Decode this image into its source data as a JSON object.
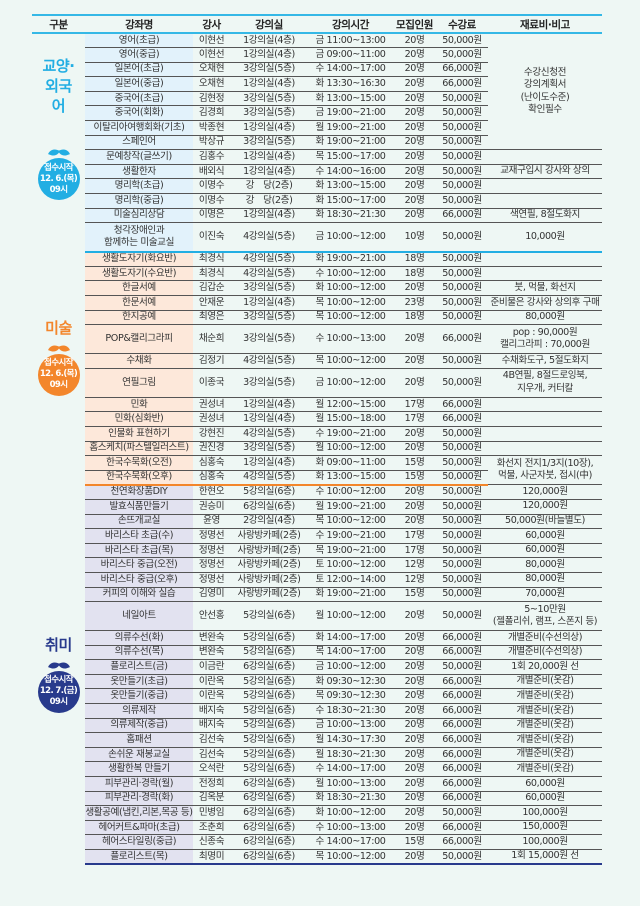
{
  "header": [
    "구분",
    "강좌명",
    "강사",
    "강의실",
    "강의시간",
    "모집인원",
    "수강료",
    "재료비·비고"
  ],
  "sections": [
    {
      "label": "교양·외국어",
      "color": "#22aee3",
      "name_bg": "#e2f2fb",
      "badge": {
        "title": "접수시작",
        "date": "12. 6.(목)",
        "time": "09시"
      },
      "rows": [
        {
          "name": "영어(초급)",
          "teacher": "이현선",
          "room": "1강의실(4층)",
          "time": "금 11:00~13:00",
          "cap": "20명",
          "fee": "50,000원",
          "remark": "수강신청전\n강의계획서\n(난이도수준)\n확인필수",
          "span": 8
        },
        {
          "name": "영어(중급)",
          "teacher": "이현선",
          "room": "1강의실(4층)",
          "time": "금 09:00~11:00",
          "cap": "20명",
          "fee": "50,000원"
        },
        {
          "name": "일본어(초급)",
          "teacher": "오채현",
          "room": "3강의실(5층)",
          "time": "수 14:00~17:00",
          "cap": "20명",
          "fee": "66,000원"
        },
        {
          "name": "일본어(중급)",
          "teacher": "오채현",
          "room": "1강의실(4층)",
          "time": "화 13:30~16:30",
          "cap": "20명",
          "fee": "66,000원"
        },
        {
          "name": "중국어(초급)",
          "teacher": "김현정",
          "room": "3강의실(5층)",
          "time": "화 13:00~15:00",
          "cap": "20명",
          "fee": "50,000원"
        },
        {
          "name": "중국어(회화)",
          "teacher": "김경희",
          "room": "3강의실(5층)",
          "time": "금 19:00~21:00",
          "cap": "20명",
          "fee": "50,000원"
        },
        {
          "name": "이탈리아여행회화(기초)",
          "teacher": "박종현",
          "room": "1강의실(4층)",
          "time": "월 19:00~21:00",
          "cap": "20명",
          "fee": "50,000원"
        },
        {
          "name": "스페인어",
          "teacher": "박상규",
          "room": "3강의실(5층)",
          "time": "화 19:00~21:00",
          "cap": "20명",
          "fee": "50,000원"
        },
        {
          "name": "문예창작(글쓰기)",
          "teacher": "김홍수",
          "room": "1강의실(4층)",
          "time": "목 15:00~17:00",
          "cap": "20명",
          "fee": "50,000원",
          "remark": ""
        },
        {
          "name": "생활한자",
          "teacher": "배외식",
          "room": "1강의실(4층)",
          "time": "수 14:00~16:00",
          "cap": "20명",
          "fee": "50,000원",
          "remark": "교재구입시 강사와 상의"
        },
        {
          "name": "명리학(초급)",
          "teacher": "이명수",
          "room": "강　당(2층)",
          "time": "화 13:00~15:00",
          "cap": "20명",
          "fee": "50,000원",
          "remark": ""
        },
        {
          "name": "명리학(중급)",
          "teacher": "이명수",
          "room": "강　당(2층)",
          "time": "화 15:00~17:00",
          "cap": "20명",
          "fee": "50,000원",
          "remark": ""
        },
        {
          "name": "미술심리상담",
          "teacher": "이명은",
          "room": "1강의실(4층)",
          "time": "화 18:30~21:30",
          "cap": "20명",
          "fee": "66,000원",
          "remark": "색연필, 8절도화지"
        },
        {
          "name": "청각장애인과\n함께하는 미술교실",
          "teacher": "이진숙",
          "room": "4강의실(5층)",
          "time": "금 10:00~12:00",
          "cap": "10명",
          "fee": "50,000원",
          "remark": "10,000원",
          "tall": true
        }
      ]
    },
    {
      "label": "미술",
      "color": "#f3862b",
      "name_bg": "#fde8da",
      "badge": {
        "title": "접수시작",
        "date": "12. 6.(목)",
        "time": "09시"
      },
      "rows": [
        {
          "name": "생활도자기(화요반)",
          "teacher": "최경식",
          "room": "4강의실(5층)",
          "time": "화 19:00~21:00",
          "cap": "18명",
          "fee": "50,000원",
          "remark": ""
        },
        {
          "name": "생활도자기(수요반)",
          "teacher": "최경식",
          "room": "4강의실(5층)",
          "time": "수 10:00~12:00",
          "cap": "18명",
          "fee": "50,000원",
          "remark": ""
        },
        {
          "name": "한글서예",
          "teacher": "김갑순",
          "room": "3강의실(5층)",
          "time": "화 10:00~12:00",
          "cap": "20명",
          "fee": "50,000원",
          "remark": "붓, 먹물, 화선지"
        },
        {
          "name": "한문서예",
          "teacher": "안재운",
          "room": "1강의실(4층)",
          "time": "목 10:00~12:00",
          "cap": "23명",
          "fee": "50,000원",
          "remark": "준비물은 강사와 상의후 구매"
        },
        {
          "name": "한지공예",
          "teacher": "최영은",
          "room": "3강의실(5층)",
          "time": "목 10:00~12:00",
          "cap": "18명",
          "fee": "50,000원",
          "remark": "80,000원"
        },
        {
          "name": "POP&캘리그라피",
          "teacher": "채순희",
          "room": "3강의실(5층)",
          "time": "수 10:00~13:00",
          "cap": "20명",
          "fee": "66,000원",
          "remark": "pop : 90,000원\n캘리그라피 : 70,000원",
          "tall": true
        },
        {
          "name": "수채화",
          "teacher": "김정기",
          "room": "4강의실(5층)",
          "time": "목 10:00~12:00",
          "cap": "20명",
          "fee": "50,000원",
          "remark": "수채화도구, 5절도화지"
        },
        {
          "name": "연필그림",
          "teacher": "이종국",
          "room": "3강의실(5층)",
          "time": "금 10:00~12:00",
          "cap": "20명",
          "fee": "50,000원",
          "remark": "4B연필, 8절드로잉북,\n지우개, 커터칼",
          "tall": true
        },
        {
          "name": "민화",
          "teacher": "권성녀",
          "room": "1강의실(4층)",
          "time": "월 12:00~15:00",
          "cap": "17명",
          "fee": "66,000원",
          "remark": ""
        },
        {
          "name": "민화(심화반)",
          "teacher": "권성녀",
          "room": "1강의실(4층)",
          "time": "월 15:00~18:00",
          "cap": "17명",
          "fee": "66,000원",
          "remark": ""
        },
        {
          "name": "인물화 표현하기",
          "teacher": "강현진",
          "room": "4강의실(5층)",
          "time": "수 19:00~21:00",
          "cap": "20명",
          "fee": "50,000원",
          "remark": ""
        },
        {
          "name": "홈스케치(파스텔일러스트)",
          "teacher": "권진경",
          "room": "3강의실(5층)",
          "time": "월 10:00~12:00",
          "cap": "20명",
          "fee": "50,000원",
          "remark": ""
        },
        {
          "name": "한국수묵화(오전)",
          "teacher": "심홍숙",
          "room": "1강의실(4층)",
          "time": "화 09:00~11:00",
          "cap": "15명",
          "fee": "50,000원",
          "remark": "화선지 전지1/3지(10장),\n먹물, 사군자붓, 접시(中)",
          "span": 2
        },
        {
          "name": "한국수묵화(오후)",
          "teacher": "심홍숙",
          "room": "4강의실(5층)",
          "time": "화 13:00~15:00",
          "cap": "15명",
          "fee": "50,000원"
        }
      ]
    },
    {
      "label": "취미",
      "color": "#283a8c",
      "name_bg": "#e2e2f0",
      "badge": {
        "title": "접수시작",
        "date": "12. 7.(금)",
        "time": "09시"
      },
      "rows": [
        {
          "name": "천연화장품DIY",
          "teacher": "한현오",
          "room": "5강의실(6층)",
          "time": "수 10:00~12:00",
          "cap": "20명",
          "fee": "50,000원",
          "remark": "120,000원"
        },
        {
          "name": "발효식품만들기",
          "teacher": "권승미",
          "room": "6강의실(6층)",
          "time": "월 19:00~21:00",
          "cap": "20명",
          "fee": "50,000원",
          "remark": "120,000원"
        },
        {
          "name": "손뜨개교실",
          "teacher": "윤영",
          "room": "2강의실(4층)",
          "time": "목 10:00~12:00",
          "cap": "20명",
          "fee": "50,000원",
          "remark": "50,000원(바늘별도)"
        },
        {
          "name": "바리스타 초급(수)",
          "teacher": "정명선",
          "room": "사랑방카페(2층)",
          "time": "수 19:00~21:00",
          "cap": "17명",
          "fee": "50,000원",
          "remark": "60,000원"
        },
        {
          "name": "바리스타 초급(목)",
          "teacher": "정명선",
          "room": "사랑방카페(2층)",
          "time": "목 19:00~21:00",
          "cap": "17명",
          "fee": "50,000원",
          "remark": "60,000원"
        },
        {
          "name": "바리스타 중급(오전)",
          "teacher": "정명선",
          "room": "사랑방카페(2층)",
          "time": "토 10:00~12:00",
          "cap": "12명",
          "fee": "50,000원",
          "remark": "80,000원"
        },
        {
          "name": "바리스타 중급(오후)",
          "teacher": "정명선",
          "room": "사랑방카페(2층)",
          "time": "토 12:00~14:00",
          "cap": "12명",
          "fee": "50,000원",
          "remark": "80,000원"
        },
        {
          "name": "커피의 이해와 실습",
          "teacher": "김영미",
          "room": "사랑방카페(2층)",
          "time": "화 19:00~21:00",
          "cap": "15명",
          "fee": "50,000원",
          "remark": "70,000원"
        },
        {
          "name": "네일아트",
          "teacher": "안선홍",
          "room": "5강의실(6층)",
          "time": "월 10:00~12:00",
          "cap": "20명",
          "fee": "50,000원",
          "remark": "5~10만원\n(젤폴리쉬, 램프, 스폰지 등)",
          "tall": true
        },
        {
          "name": "의류수선(화)",
          "teacher": "변완숙",
          "room": "5강의실(6층)",
          "time": "화 14:00~17:00",
          "cap": "20명",
          "fee": "66,000원",
          "remark": "개별준비(수선의상)"
        },
        {
          "name": "의류수선(목)",
          "teacher": "변완숙",
          "room": "5강의실(6층)",
          "time": "목 14:00~17:00",
          "cap": "20명",
          "fee": "66,000원",
          "remark": "개별준비(수선의상)"
        },
        {
          "name": "플로리스트(금)",
          "teacher": "이금란",
          "room": "6강의실(6층)",
          "time": "금 10:00~12:00",
          "cap": "20명",
          "fee": "50,000원",
          "remark": "1회 20,000원 선"
        },
        {
          "name": "옷만들기(초급)",
          "teacher": "이란옥",
          "room": "5강의실(6층)",
          "time": "화 09:30~12:30",
          "cap": "20명",
          "fee": "66,000원",
          "remark": "개별준비(옷감)"
        },
        {
          "name": "옷만들기(중급)",
          "teacher": "이란옥",
          "room": "5강의실(6층)",
          "time": "목 09:30~12:30",
          "cap": "20명",
          "fee": "66,000원",
          "remark": "개별준비(옷감)"
        },
        {
          "name": "의류제작",
          "teacher": "배지숙",
          "room": "5강의실(6층)",
          "time": "수 18:30~21:30",
          "cap": "20명",
          "fee": "66,000원",
          "remark": "개별준비(옷감)"
        },
        {
          "name": "의류제작(중급)",
          "teacher": "배지숙",
          "room": "5강의실(6층)",
          "time": "금 10:00~13:00",
          "cap": "20명",
          "fee": "66,000원",
          "remark": "개별준비(옷감)"
        },
        {
          "name": "홈패션",
          "teacher": "김선숙",
          "room": "5강의실(6층)",
          "time": "월 14:30~17:30",
          "cap": "20명",
          "fee": "66,000원",
          "remark": "개별준비(옷감)"
        },
        {
          "name": "손쉬운 재봉교실",
          "teacher": "김선숙",
          "room": "5강의실(6층)",
          "time": "월 18:30~21:30",
          "cap": "20명",
          "fee": "66,000원",
          "remark": "개별준비(옷감)"
        },
        {
          "name": "생활한복 만들기",
          "teacher": "오석란",
          "room": "5강의실(6층)",
          "time": "수 14:00~17:00",
          "cap": "20명",
          "fee": "66,000원",
          "remark": "개별준비(옷감)"
        },
        {
          "name": "피부관리·경락(월)",
          "teacher": "전정희",
          "room": "6강의실(6층)",
          "time": "월 10:00~13:00",
          "cap": "20명",
          "fee": "66,000원",
          "remark": "60,000원"
        },
        {
          "name": "피부관리·경락(화)",
          "teacher": "김옥분",
          "room": "6강의실(6층)",
          "time": "화 18:30~21:30",
          "cap": "20명",
          "fee": "66,000원",
          "remark": "60,000원"
        },
        {
          "name": "생활공예(냅킨,리본,목공 등)",
          "teacher": "민병임",
          "room": "6강의실(6층)",
          "time": "화 10:00~12:00",
          "cap": "20명",
          "fee": "50,000원",
          "remark": "100,000원"
        },
        {
          "name": "헤어커트&파마(초급)",
          "teacher": "조춘희",
          "room": "6강의실(6층)",
          "time": "수 10:00~13:00",
          "cap": "20명",
          "fee": "66,000원",
          "remark": "150,000원"
        },
        {
          "name": "헤어스타일링(중급)",
          "teacher": "신종숙",
          "room": "6강의실(6층)",
          "time": "수 14:00~17:00",
          "cap": "15명",
          "fee": "66,000원",
          "remark": "100,000원"
        },
        {
          "name": "플로리스트(목)",
          "teacher": "최명미",
          "room": "6강의실(6층)",
          "time": "목 10:00~12:00",
          "cap": "20명",
          "fee": "50,000원",
          "remark": "1회 15,000원 선"
        }
      ]
    }
  ]
}
